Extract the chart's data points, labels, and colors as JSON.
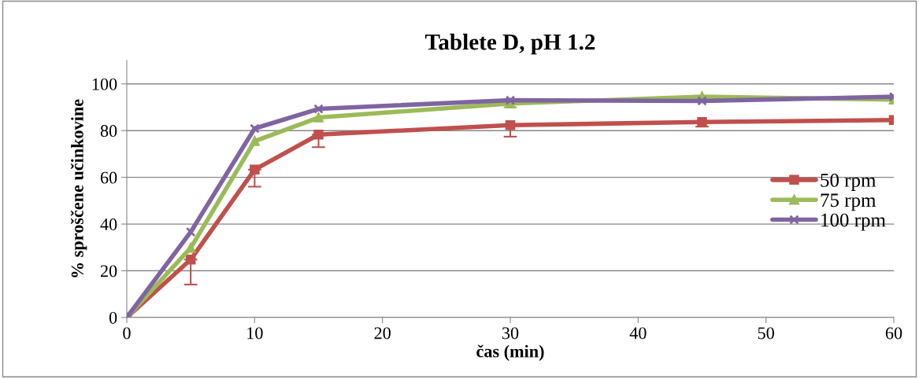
{
  "chart_data": {
    "type": "line",
    "title": "Tablete D, pH 1.2",
    "xlabel": "čas (min)",
    "ylabel": "% sproščene učinkovine",
    "x": [
      0,
      5,
      10,
      15,
      30,
      45,
      60
    ],
    "series": [
      {
        "name": "50 rpm",
        "color": "#c0504d",
        "marker": "square",
        "values": [
          0,
          24.8,
          63.3,
          78.3,
          82.3,
          83.7,
          84.5
        ],
        "errors": [
          null,
          [
            14.1,
            24.8
          ],
          [
            56,
            63.3
          ],
          [
            72.9,
            78.3
          ],
          [
            77.4,
            82.3
          ],
          [
            81.7,
            83.7
          ],
          null
        ]
      },
      {
        "name": "75 rpm",
        "color": "#9bbb59",
        "marker": "triangle",
        "values": [
          0,
          29.8,
          75.5,
          85.6,
          91.6,
          94.5,
          93.3
        ],
        "errors": [
          null,
          null,
          null,
          null,
          [
            90,
            91.6
          ],
          null,
          null
        ]
      },
      {
        "name": "100 rpm",
        "color": "#8064a2",
        "marker": "cross",
        "values": [
          0,
          36.6,
          80.9,
          89.3,
          93,
          92.7,
          94.5
        ]
      }
    ],
    "xlim": [
      0,
      60
    ],
    "xticks": [
      0,
      10,
      20,
      30,
      40,
      50,
      60
    ],
    "ylim": [
      0,
      110
    ],
    "yticks": [
      0,
      20,
      40,
      60,
      80,
      100
    ],
    "grid": "y",
    "legend": "right",
    "line_style": "solid"
  }
}
